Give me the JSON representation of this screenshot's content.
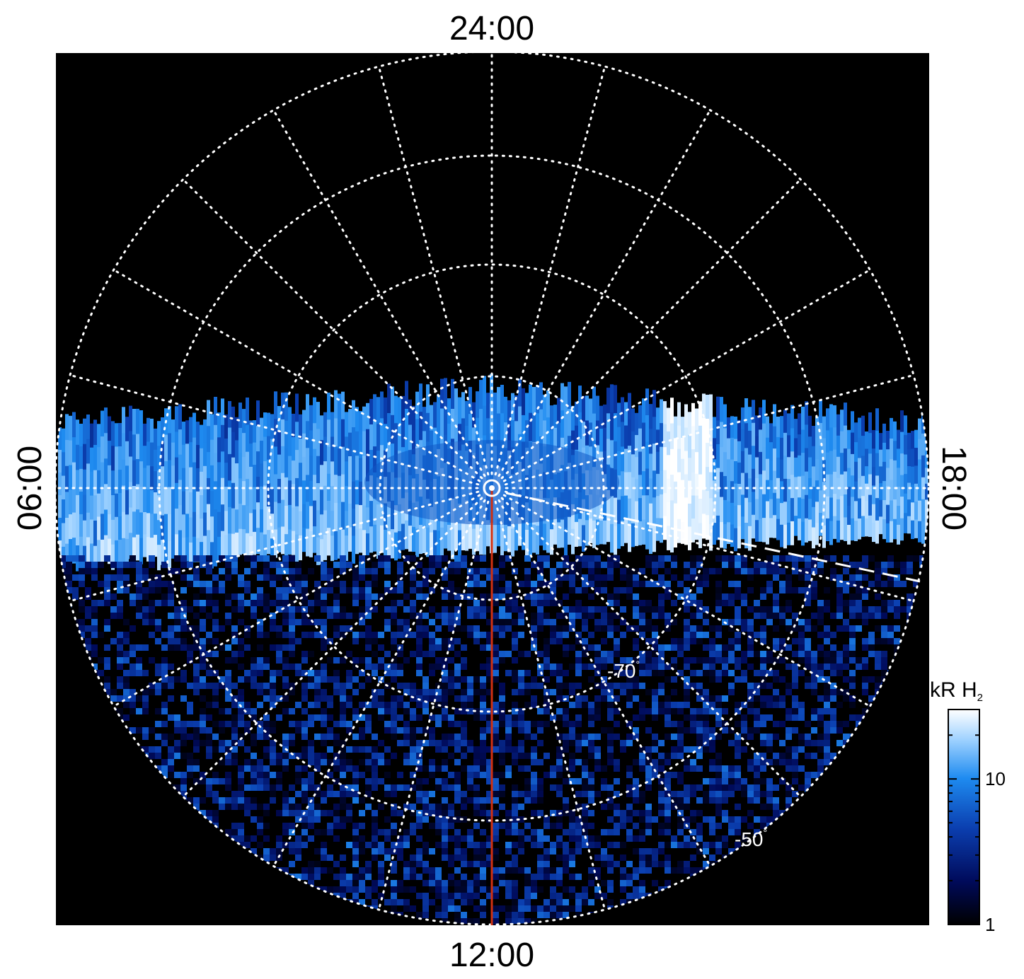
{
  "chart_data": {
    "type": "heatmap",
    "projection": "polar",
    "local_time_labels": {
      "top": "24:00",
      "bottom": "12:00",
      "left": "06:00",
      "right": "18:00"
    },
    "latitude_labels": [
      {
        "value": "-70",
        "unit": "°"
      },
      {
        "value": "-50",
        "unit": "°"
      }
    ],
    "colorbar": {
      "title": "kR H",
      "title_subscript": "2",
      "scale": "log",
      "range": [
        1,
        30
      ],
      "ticks": [
        {
          "value": 1,
          "label": "1"
        },
        {
          "value": 10,
          "label": "10"
        }
      ],
      "colors": [
        "#000000",
        "#000a5a",
        "#0b3fb0",
        "#1e8bf0",
        "#9fd2ff",
        "#ffffff"
      ]
    },
    "grid": true,
    "auroral_oval": {
      "band_center_value": 15,
      "peak_value": 30,
      "polar_cap_value": 6,
      "equatorward_value": 3
    },
    "colors": {
      "background": "#000000",
      "grid": "#ffffff",
      "meridian_line": "#d23010",
      "dashed_line": "#ffffff"
    }
  }
}
